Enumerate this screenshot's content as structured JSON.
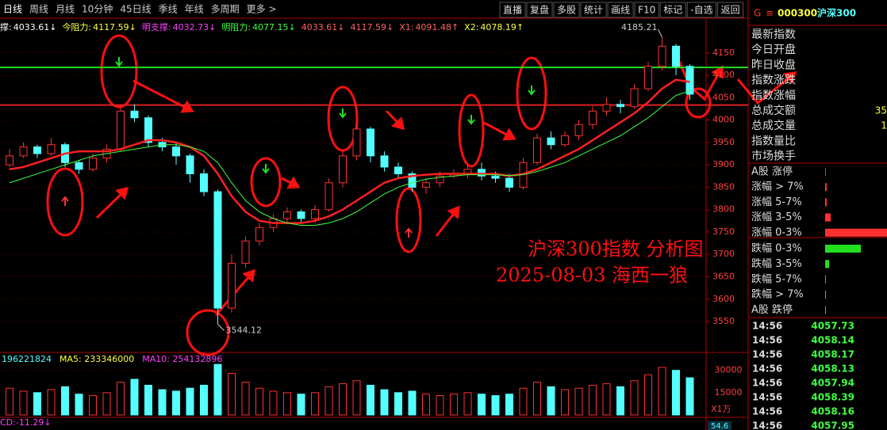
{
  "toolbar": {
    "periods": [
      "日线",
      "周线",
      "月线",
      "10分钟",
      "45日线",
      "季线",
      "年线",
      "多周期",
      "更多 >"
    ],
    "buttons": [
      "直播",
      "复盘",
      "多股",
      "统计",
      "画线",
      "F10",
      "标记",
      "-自选",
      "返回"
    ]
  },
  "indicators": [
    {
      "label": "撑:",
      "value": 4033.61,
      "arrow": "↓",
      "color": "#ffffff",
      "line_color": "#e02020"
    },
    {
      "label": "今阻力:",
      "value": 4117.59,
      "arrow": "↓",
      "color": "#ffff40",
      "line_color": "#20e020"
    },
    {
      "label": "明支撑:",
      "value": 4032.73,
      "arrow": "↓",
      "color": "#ff40ff"
    },
    {
      "label": "明阻力:",
      "value": 4077.15,
      "arrow": "↓",
      "color": "#40ff40"
    },
    {
      "value": 4033.61,
      "arrow": "↓",
      "color": "#ff6060"
    },
    {
      "value": 4117.59,
      "arrow": "↓",
      "color": "#ff6060"
    },
    {
      "label": "X1:",
      "value": 4091.48,
      "arrow": "↑",
      "color": "#ff6060"
    },
    {
      "label": "X2:",
      "value": 4078.19,
      "arrow": "↑",
      "color": "#ffff40"
    }
  ],
  "chart_data": {
    "type": "candlestick",
    "up_color": "#ff3030",
    "down_color": "#54ffff",
    "open": [
      3900,
      3920,
      3940,
      3925,
      3945,
      3905,
      3890,
      3915,
      3935,
      4020,
      4005,
      3950,
      3940,
      3920,
      3880,
      3840,
      3580,
      3680,
      3730,
      3760,
      3780,
      3795,
      3780,
      3800,
      3860,
      3920,
      3980,
      3920,
      3895,
      3880,
      3850,
      3860,
      3875,
      3880,
      3890,
      3875,
      3870,
      3850,
      3905,
      3960,
      3945,
      3965,
      3990,
      4020,
      4035,
      4030,
      4070,
      4120,
      4165,
      4120
    ],
    "high": [
      3935,
      3950,
      3945,
      3960,
      3950,
      3910,
      3925,
      3945,
      4030,
      4035,
      4010,
      3960,
      3950,
      3925,
      3890,
      3845,
      3700,
      3740,
      3770,
      3790,
      3805,
      3800,
      3810,
      3870,
      3930,
      3990,
      3985,
      3930,
      3905,
      3885,
      3870,
      3885,
      3890,
      3900,
      3905,
      3885,
      3880,
      3915,
      3970,
      3975,
      3975,
      4000,
      4030,
      4050,
      4045,
      4080,
      4130,
      4185.21,
      4170,
      4125
    ],
    "low": [
      3895,
      3915,
      3915,
      3920,
      3895,
      3880,
      3885,
      3905,
      3930,
      3995,
      3940,
      3930,
      3900,
      3860,
      3830,
      3544.12,
      3570,
      3670,
      3720,
      3750,
      3770,
      3770,
      3770,
      3795,
      3850,
      3910,
      3905,
      3885,
      3870,
      3840,
      3835,
      3850,
      3870,
      3870,
      3865,
      3860,
      3840,
      3845,
      3900,
      3935,
      3940,
      3955,
      3980,
      4010,
      4015,
      4025,
      4065,
      4110,
      4100,
      4045
    ],
    "close": [
      3920,
      3940,
      3925,
      3945,
      3905,
      3890,
      3915,
      3935,
      4020,
      4005,
      3950,
      3940,
      3920,
      3880,
      3840,
      3580,
      3680,
      3730,
      3760,
      3780,
      3795,
      3780,
      3800,
      3860,
      3920,
      3980,
      3920,
      3895,
      3880,
      3850,
      3860,
      3875,
      3880,
      3890,
      3875,
      3870,
      3850,
      3905,
      3960,
      3945,
      3965,
      3990,
      4020,
      4035,
      4030,
      4070,
      4120,
      4165,
      4120,
      4057.73
    ],
    "lines": [
      {
        "color": "#ff2020",
        "values": [
          3890,
          3895,
          3905,
          3915,
          3925,
          3930,
          3930,
          3930,
          3935,
          3945,
          3955,
          3955,
          3950,
          3940,
          3920,
          3880,
          3830,
          3795,
          3775,
          3770,
          3770,
          3770,
          3775,
          3785,
          3800,
          3820,
          3840,
          3860,
          3870,
          3875,
          3878,
          3880,
          3880,
          3880,
          3880,
          3880,
          3875,
          3880,
          3890,
          3905,
          3920,
          3935,
          3955,
          3975,
          3995,
          4015,
          4040,
          4070,
          4090,
          4085
        ]
      },
      {
        "color": "#40ff40",
        "values": [
          3860,
          3870,
          3880,
          3890,
          3900,
          3910,
          3920,
          3925,
          3930,
          3935,
          3940,
          3945,
          3945,
          3940,
          3930,
          3905,
          3860,
          3820,
          3795,
          3780,
          3770,
          3765,
          3765,
          3770,
          3780,
          3795,
          3815,
          3835,
          3850,
          3860,
          3868,
          3872,
          3875,
          3878,
          3878,
          3878,
          3876,
          3878,
          3885,
          3895,
          3905,
          3920,
          3935,
          3950,
          3965,
          3985,
          4005,
          4030,
          4055,
          4065
        ]
      }
    ],
    "ylim": [
      3490,
      4215
    ],
    "yticks": [
      3550,
      3600,
      3650,
      3700,
      3750,
      3800,
      3850,
      3900,
      3950,
      4000,
      4050,
      4100,
      4150
    ],
    "annotations": [
      "4185.21",
      "3544.12"
    ]
  },
  "volume": {
    "legend": [
      {
        "text": "196221824",
        "color": "#54ffff"
      },
      {
        "text": "MA5: 233346000",
        "color": "#ffff40"
      },
      {
        "text": "MA10: 254132896",
        "color": "#ff40ff"
      }
    ],
    "values": [
      18000,
      16000,
      15000,
      17000,
      19000,
      14000,
      13000,
      15000,
      22000,
      24000,
      20000,
      17000,
      16000,
      18000,
      20000,
      34000,
      28000,
      22000,
      18000,
      16000,
      15000,
      14000,
      15000,
      19000,
      21000,
      23000,
      20000,
      17000,
      15000,
      16000,
      14000,
      13000,
      14000,
      15000,
      14000,
      13000,
      14000,
      18000,
      22000,
      19000,
      17000,
      18000,
      20000,
      21000,
      19000,
      23000,
      27000,
      32000,
      30000,
      25000
    ],
    "ylim": [
      0,
      41000
    ],
    "yticks": [
      30000,
      15000
    ],
    "unit": "X1万"
  },
  "macd": {
    "label": "CD:-11.29↓"
  },
  "overlay": {
    "title": "沪深300指数 分析图",
    "subtitle": "2025-08-03 海西一狼"
  },
  "right_panel": {
    "header": {
      "flag": "G",
      "menu": "≡",
      "code": "000300",
      "name": "沪深300"
    },
    "stats": [
      {
        "label": "最新指数"
      },
      {
        "label": "今日开盘"
      },
      {
        "label": "昨日收盘"
      },
      {
        "label": "指数涨跌"
      },
      {
        "label": "指数涨幅"
      },
      {
        "label": "总成交额",
        "value": "35"
      },
      {
        "label": "总成交量",
        "value": "1"
      },
      {
        "label": "指数量比"
      },
      {
        "label": "市场换手"
      }
    ],
    "breadth": [
      {
        "label": "A股 涨停",
        "count": 1,
        "color": "#ff3030"
      },
      {
        "label": "涨幅 > 7%",
        "count": 2,
        "color": "#ff3030"
      },
      {
        "label": "涨幅 5-7%",
        "count": 2,
        "color": "#ff3030"
      },
      {
        "label": "涨幅 3-5%",
        "count": 7,
        "color": "#ff3030"
      },
      {
        "label": "涨幅 0-3%",
        "count": 78,
        "color": "#ff3030"
      },
      {
        "label": "跌幅 0-3%",
        "count": 45,
        "color": "#20e020"
      },
      {
        "label": "跌幅 3-5%",
        "count": 5,
        "color": "#20e020"
      },
      {
        "label": "跌幅 5-7%",
        "count": 1,
        "color": "#20e020"
      },
      {
        "label": "跌幅 > 7%",
        "count": 1,
        "color": "#20e020"
      },
      {
        "label": "A股 跌停",
        "count": 1,
        "color": "#20e020"
      }
    ],
    "ticks": [
      {
        "time": "14:56",
        "price": 4057.73
      },
      {
        "time": "14:56",
        "price": 4058.14
      },
      {
        "time": "14:56",
        "price": 4058.17
      },
      {
        "time": "14:56",
        "price": 4058.13
      },
      {
        "time": "14:56",
        "price": 4057.94
      },
      {
        "time": "14:56",
        "price": 4058.39
      },
      {
        "time": "14:56",
        "price": 4058.16
      },
      {
        "time": "14:56",
        "price": 4057.95
      }
    ]
  },
  "status": "54.6"
}
